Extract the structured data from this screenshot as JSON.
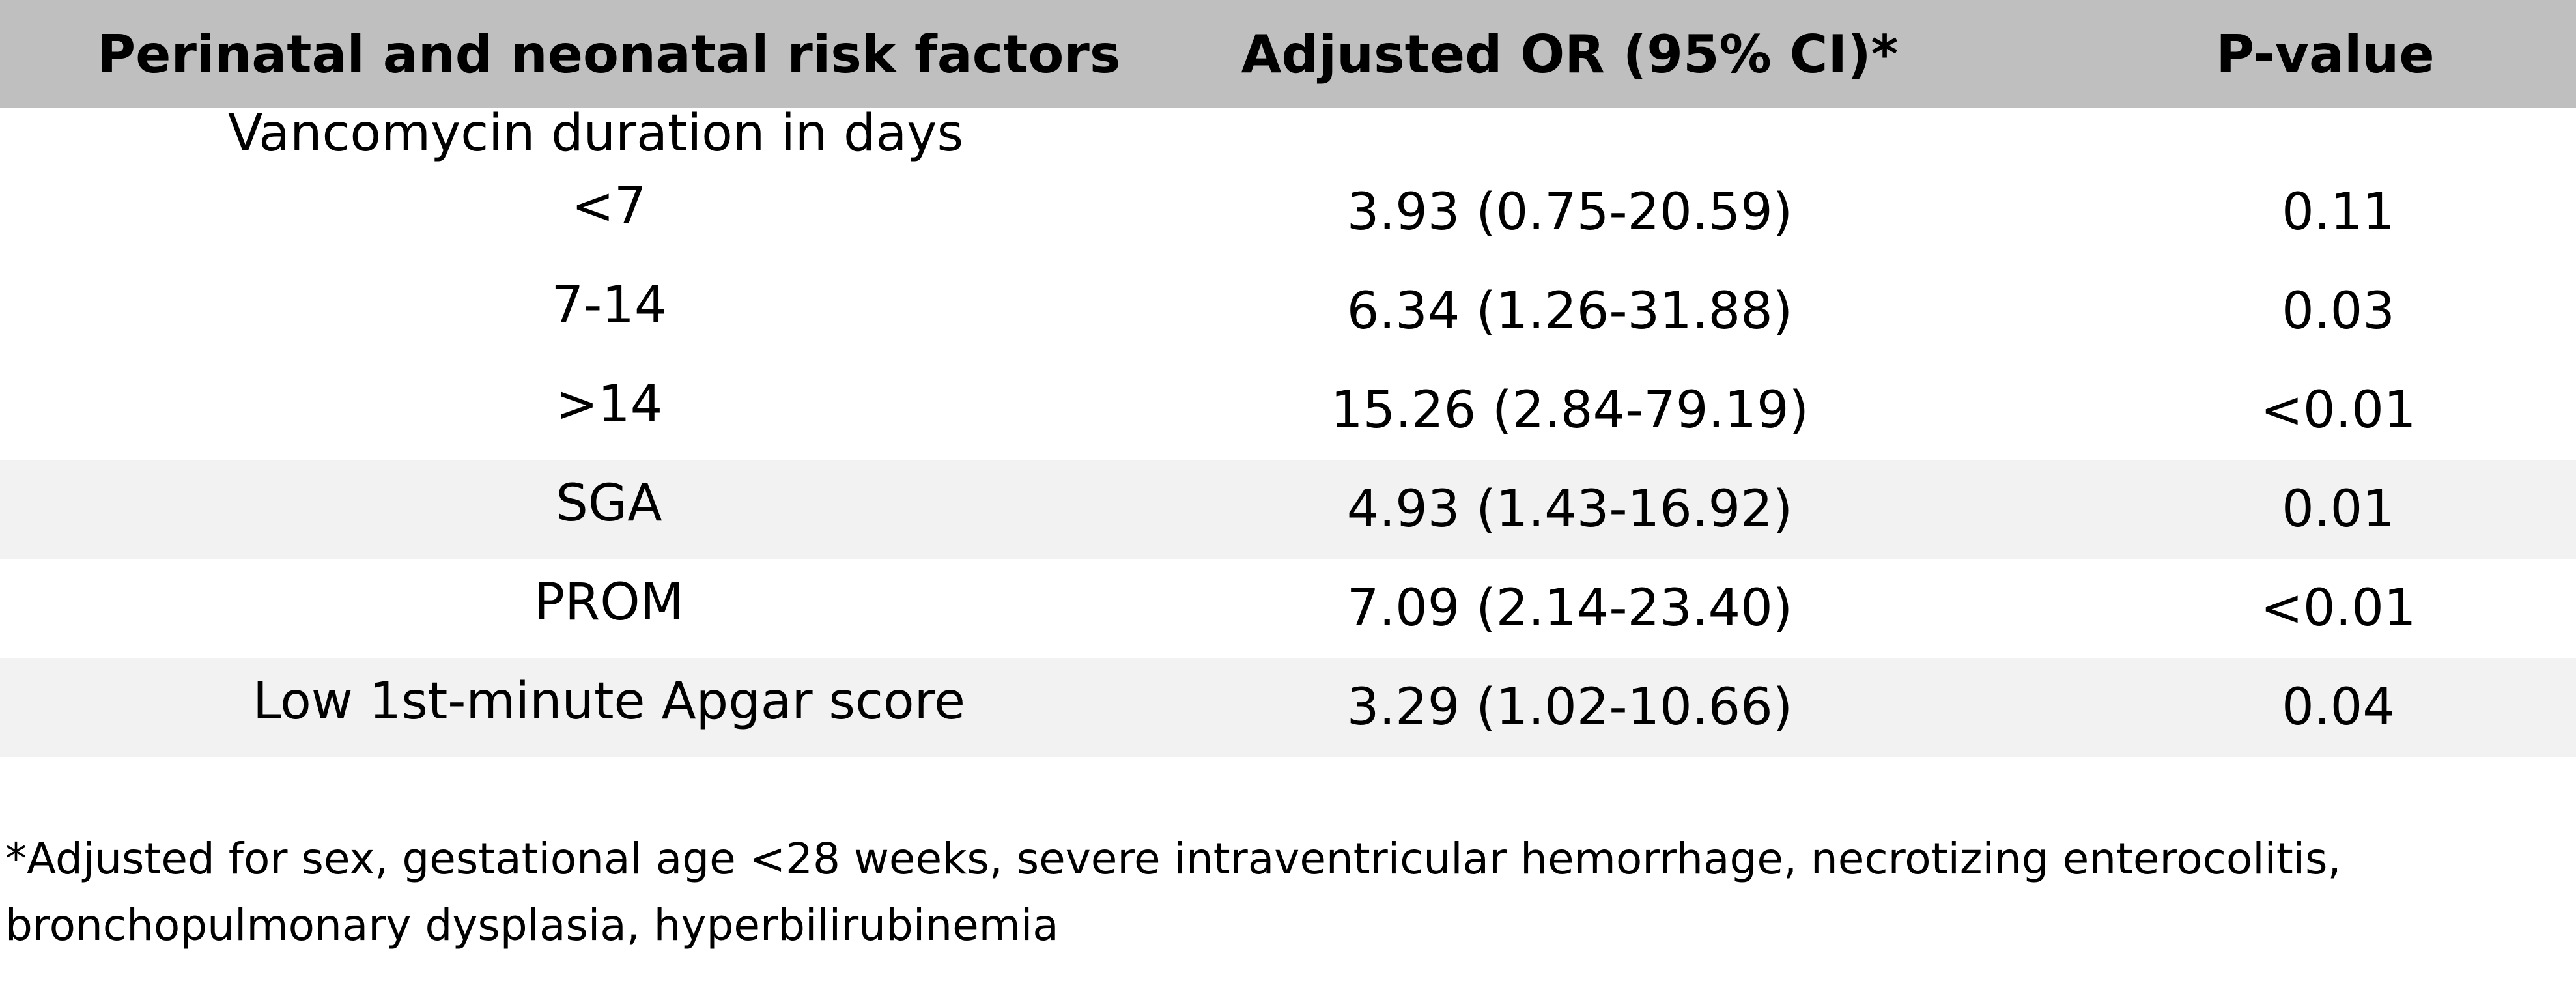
{
  "table": {
    "headers": [
      "Perinatal and neonatal risk factors",
      "Adjusted OR (95% CI)*",
      "P-value"
    ],
    "group_label": "Vancomycin duration in days",
    "rows": [
      {
        "factor": "<7",
        "or": "3.93 (0.75-20.59)",
        "p": "0.11",
        "shaded": false
      },
      {
        "factor": "7-14",
        "or": "6.34 (1.26-31.88)",
        "p": "0.03",
        "shaded": false
      },
      {
        "factor": ">14",
        "or": "15.26 (2.84-79.19)",
        "p": "<0.01",
        "shaded": false
      },
      {
        "factor": "SGA",
        "or": "4.93 (1.43-16.92)",
        "p": "0.01",
        "shaded": true
      },
      {
        "factor": "PROM",
        "or": "7.09 (2.14-23.40)",
        "p": "<0.01",
        "shaded": false
      },
      {
        "factor": "Low 1st-minute Apgar score",
        "or": "3.29 (1.02-10.66)",
        "p": "0.04",
        "shaded": true
      }
    ]
  },
  "footnote": {
    "line1": "*Adjusted for sex, gestational age <28 weeks, severe intraventricular hemorrhage, necrotizing enterocolitis,",
    "line2": "bronchopulmonary dysplasia, hyperbilirubinemia"
  },
  "colors": {
    "header_bg": "#bfbfbf",
    "shaded_bg": "#f2f2f2"
  }
}
